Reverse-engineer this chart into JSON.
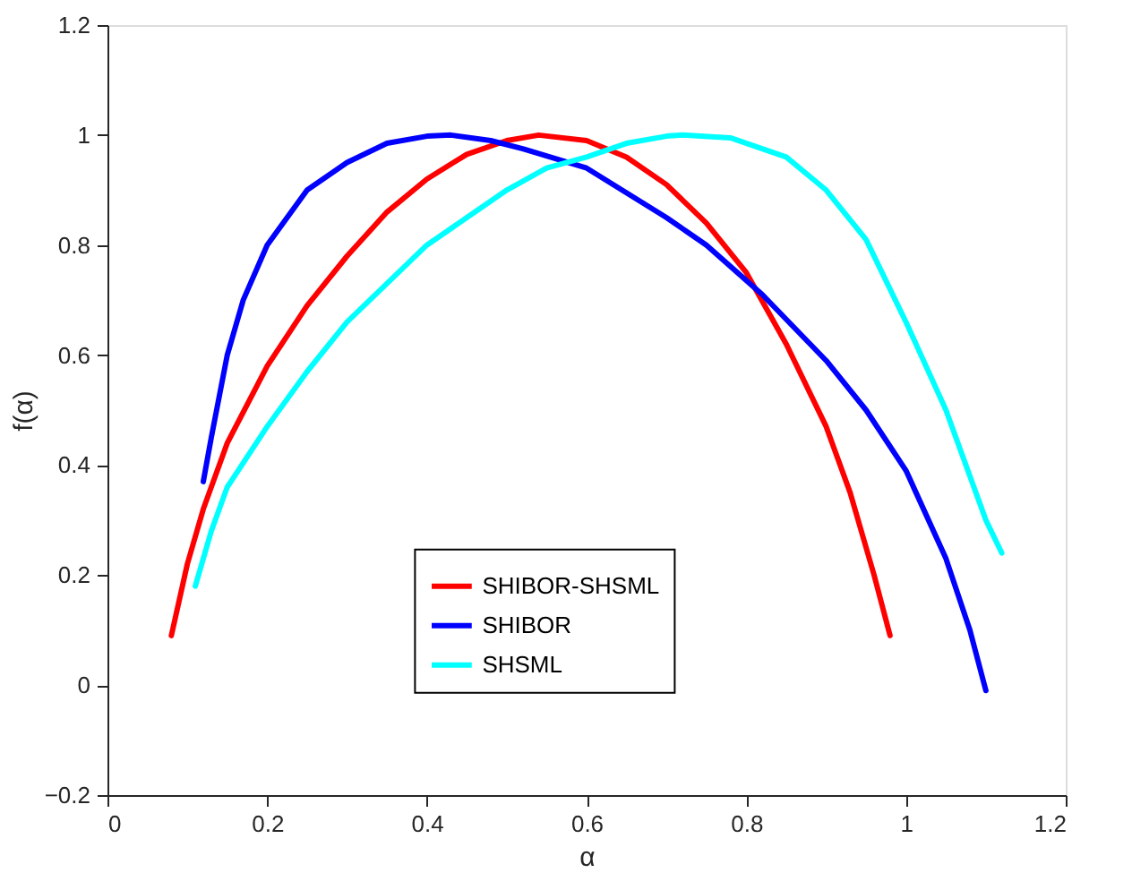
{
  "chart_data": {
    "type": "line",
    "xlabel": "α",
    "ylabel": "f(α)",
    "xlim": [
      0,
      1.2
    ],
    "xticks": [
      0,
      0.2,
      0.4,
      0.6,
      0.8,
      1,
      1.2
    ],
    "ylim": [
      -0.2,
      1.2
    ],
    "yticks": [
      -0.2,
      0,
      0.2,
      0.4,
      0.6,
      0.8,
      1,
      1.2
    ],
    "grid": false,
    "legend": "bottom",
    "marker": "none",
    "line_style": "solid",
    "series": [
      {
        "name": "SHIBOR-SHSML",
        "color": "#ff0000",
        "x": [
          0.08,
          0.1,
          0.12,
          0.15,
          0.2,
          0.25,
          0.3,
          0.35,
          0.4,
          0.45,
          0.5,
          0.54,
          0.6,
          0.65,
          0.7,
          0.75,
          0.8,
          0.85,
          0.9,
          0.93,
          0.96,
          0.98
        ],
        "values": [
          0.09,
          0.22,
          0.32,
          0.44,
          0.58,
          0.69,
          0.78,
          0.86,
          0.92,
          0.965,
          0.99,
          1.0,
          0.99,
          0.96,
          0.91,
          0.84,
          0.75,
          0.62,
          0.47,
          0.35,
          0.2,
          0.09
        ]
      },
      {
        "name": "SHIBOR",
        "color": "#0000ff",
        "x": [
          0.12,
          0.13,
          0.15,
          0.17,
          0.2,
          0.25,
          0.3,
          0.35,
          0.4,
          0.43,
          0.48,
          0.52,
          0.6,
          0.7,
          0.75,
          0.82,
          0.9,
          0.95,
          1.0,
          1.05,
          1.08,
          1.1
        ],
        "values": [
          0.37,
          0.45,
          0.6,
          0.7,
          0.8,
          0.9,
          0.95,
          0.985,
          0.998,
          1.0,
          0.99,
          0.975,
          0.94,
          0.85,
          0.8,
          0.71,
          0.59,
          0.5,
          0.39,
          0.23,
          0.1,
          -0.01
        ]
      },
      {
        "name": "SHSML",
        "color": "#00ffff",
        "x": [
          0.11,
          0.13,
          0.15,
          0.2,
          0.25,
          0.3,
          0.35,
          0.4,
          0.45,
          0.5,
          0.55,
          0.6,
          0.65,
          0.7,
          0.72,
          0.78,
          0.85,
          0.9,
          0.95,
          1.0,
          1.05,
          1.08,
          1.1,
          1.12
        ],
        "values": [
          0.18,
          0.28,
          0.36,
          0.47,
          0.57,
          0.66,
          0.73,
          0.8,
          0.85,
          0.9,
          0.94,
          0.96,
          0.985,
          0.998,
          1.0,
          0.995,
          0.96,
          0.9,
          0.81,
          0.66,
          0.5,
          0.38,
          0.3,
          0.24
        ]
      }
    ]
  }
}
